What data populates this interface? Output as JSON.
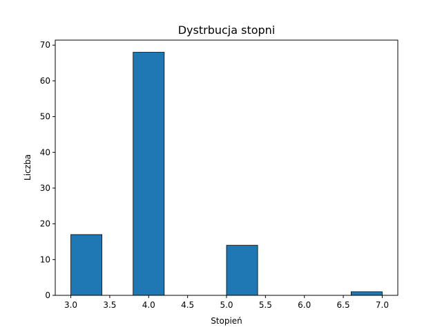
{
  "chart_data": {
    "type": "bar",
    "title": "Dystrbucja stopni",
    "xlabel": "Stopień",
    "ylabel": "Liczba",
    "xlim": [
      2.8,
      7.2
    ],
    "ylim": [
      0,
      71.4
    ],
    "xticks": [
      "3.0",
      "3.5",
      "4.0",
      "4.5",
      "5.0",
      "5.5",
      "6.0",
      "6.5",
      "7.0"
    ],
    "yticks": [
      "0",
      "10",
      "20",
      "30",
      "40",
      "50",
      "60",
      "70"
    ],
    "bins": [
      {
        "x0": 3.0,
        "x1": 3.4,
        "value": 17
      },
      {
        "x0": 3.4,
        "x1": 3.8,
        "value": 0
      },
      {
        "x0": 3.8,
        "x1": 4.2,
        "value": 68
      },
      {
        "x0": 4.2,
        "x1": 4.6,
        "value": 0
      },
      {
        "x0": 4.6,
        "x1": 5.0,
        "value": 0
      },
      {
        "x0": 5.0,
        "x1": 5.4,
        "value": 14
      },
      {
        "x0": 5.4,
        "x1": 5.8,
        "value": 0
      },
      {
        "x0": 5.8,
        "x1": 6.2,
        "value": 0
      },
      {
        "x0": 6.2,
        "x1": 6.6,
        "value": 0
      },
      {
        "x0": 6.6,
        "x1": 7.0,
        "value": 1
      }
    ],
    "bar_color": "#1f77b4",
    "edge_color": "#000000",
    "grid": false,
    "legend": "none"
  }
}
